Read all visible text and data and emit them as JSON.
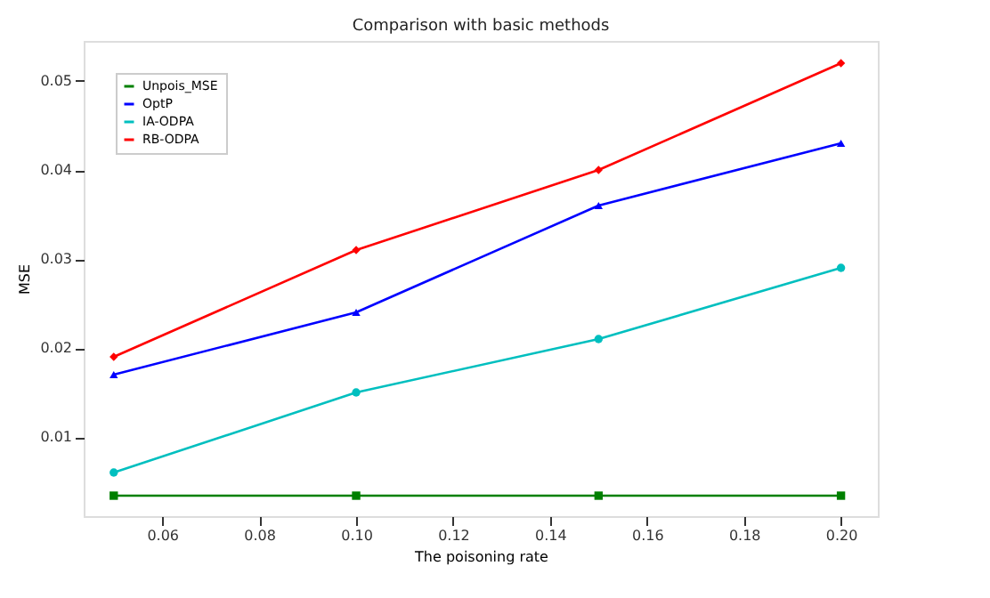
{
  "chart_data": {
    "type": "line",
    "title": "Comparison with basic methods",
    "xlabel": "The poisoning rate",
    "ylabel": "MSE",
    "x": [
      0.05,
      0.1,
      0.15,
      0.2
    ],
    "series": [
      {
        "name": "Unpois_MSE",
        "color": "#008000",
        "marker": "square",
        "values": [
          0.0034,
          0.0034,
          0.0034,
          0.0034
        ]
      },
      {
        "name": "OptP",
        "color": "#0000ff",
        "marker": "triangle",
        "values": [
          0.017,
          0.024,
          0.036,
          0.043
        ]
      },
      {
        "name": "IA-ODPA",
        "color": "#00bfbf",
        "marker": "circle",
        "values": [
          0.006,
          0.015,
          0.021,
          0.029
        ]
      },
      {
        "name": "RB-ODPA",
        "color": "#ff0000",
        "marker": "diamond",
        "values": [
          0.019,
          0.031,
          0.04,
          0.052
        ]
      }
    ],
    "xlim": [
      0.0438,
      0.2076
    ],
    "xticks": [
      {
        "value": 0.06,
        "label": "0.06"
      },
      {
        "value": 0.08,
        "label": "0.08"
      },
      {
        "value": 0.1,
        "label": "0.10"
      },
      {
        "value": 0.12,
        "label": "0.12"
      },
      {
        "value": 0.14,
        "label": "0.14"
      },
      {
        "value": 0.16,
        "label": "0.16"
      },
      {
        "value": 0.18,
        "label": "0.18"
      },
      {
        "value": 0.2,
        "label": "0.20"
      }
    ],
    "ylim": [
      0.0011,
      0.0545
    ],
    "yticks": [
      {
        "value": 0.01,
        "label": "0.01"
      },
      {
        "value": 0.02,
        "label": "0.02"
      },
      {
        "value": 0.03,
        "label": "0.03"
      },
      {
        "value": 0.04,
        "label": "0.04"
      },
      {
        "value": 0.05,
        "label": "0.05"
      }
    ],
    "grid": false,
    "legend": "top left",
    "line_style": "solid"
  }
}
